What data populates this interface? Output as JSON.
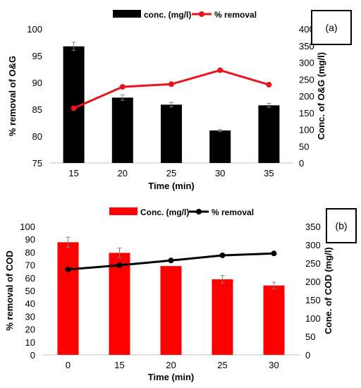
{
  "chart_data": [
    {
      "panel_label": "(a)",
      "type": "bar+line",
      "xlabel": "Time (min)",
      "ylabel_left": "% removal of O&G",
      "ylabel_right": "Conc. of O&G (mg/l)",
      "categories": [
        "15",
        "20",
        "25",
        "30",
        "35"
      ],
      "left_axis": {
        "min": 75,
        "max": 100,
        "ticks": [
          "75",
          "80",
          "85",
          "90",
          "95",
          "100"
        ]
      },
      "right_axis": {
        "min": 0,
        "max": 400,
        "ticks": [
          "0",
          "50",
          "100",
          "150",
          "200",
          "250",
          "300",
          "350",
          "400"
        ]
      },
      "series": [
        {
          "name": "conc. (mg/l)",
          "kind": "bar",
          "axis": "right",
          "color": "#000000",
          "values": [
            348,
            195,
            174,
            97,
            172
          ],
          "errors": [
            12,
            8,
            7,
            3,
            6
          ]
        },
        {
          "name": "% removal",
          "kind": "line",
          "axis": "left",
          "color": "#e8161c",
          "values": [
            85.2,
            89.2,
            89.7,
            92.3,
            89.6
          ]
        }
      ]
    },
    {
      "panel_label": "(b)",
      "type": "bar+line",
      "xlabel": "Time (min)",
      "ylabel_left": "% removal of COD",
      "ylabel_right": "Cone. of COD (mg/l)",
      "categories": [
        "0",
        "15",
        "20",
        "25",
        "30"
      ],
      "left_axis": {
        "min": 0,
        "max": 100,
        "ticks": [
          "0",
          "10",
          "20",
          "30",
          "40",
          "50",
          "60",
          "70",
          "80",
          "90",
          "100"
        ]
      },
      "right_axis": {
        "min": 0,
        "max": 350,
        "ticks": [
          "0",
          "50",
          "100",
          "150",
          "200",
          "250",
          "300",
          "350"
        ]
      },
      "series": [
        {
          "name": "Conc. (mg/l)",
          "kind": "bar",
          "axis": "right",
          "color": "#ff0000",
          "values": [
            307,
            278,
            242,
            206,
            189
          ],
          "errors": [
            14,
            13,
            0,
            10,
            9
          ]
        },
        {
          "name": "% removal",
          "kind": "line",
          "axis": "left",
          "color": "#000000",
          "values": [
            66.5,
            69.8,
            73.5,
            77.5,
            79.0
          ]
        }
      ]
    }
  ]
}
